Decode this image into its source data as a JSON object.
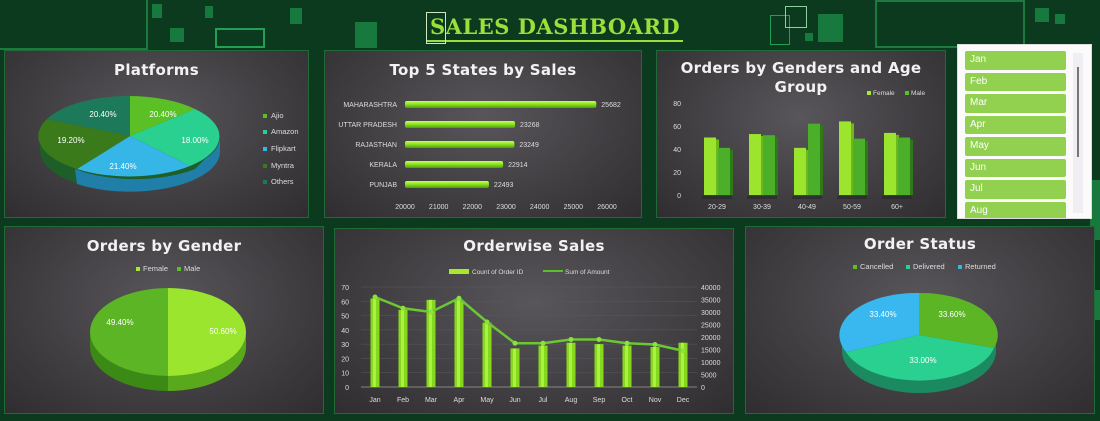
{
  "header": {
    "title": "SALES DASHBOARD"
  },
  "colors": {
    "background": "#0c3a1f",
    "accent": "#9be03a",
    "panel": "#3d3b3e",
    "lime": "#92d050",
    "green": "#4caf2a",
    "teal": "#2ad08f",
    "cyan": "#35b6e6",
    "darkgreen": "#3a7a1a",
    "darkteal": "#1c7a5a"
  },
  "month_slicer": {
    "items": [
      "Jan",
      "Feb",
      "Mar",
      "Apr",
      "May",
      "Jun",
      "Jul",
      "Aug"
    ]
  },
  "panels": {
    "platforms": {
      "title": "Platforms"
    },
    "states": {
      "title": "Top 5 States by Sales"
    },
    "age": {
      "title_line1": "Orders by Genders and Age",
      "title_line2": "Group"
    },
    "gender": {
      "title": "Orders by Gender"
    },
    "orderwise": {
      "title": "Orderwise Sales"
    },
    "status": {
      "title": "Order Status"
    }
  },
  "chart_data": [
    {
      "id": "platforms",
      "type": "pie",
      "title": "Platforms",
      "categories": [
        "Ajio",
        "Amazon",
        "Flipkart",
        "Myntra",
        "Others"
      ],
      "values": [
        20.4,
        18.0,
        21.4,
        19.2,
        20.4
      ],
      "labels": [
        "20.40%",
        "18.00%",
        "21.40%",
        "19.20%",
        "20.40%"
      ],
      "legend_position": "right"
    },
    {
      "id": "states",
      "type": "bar",
      "orientation": "horizontal",
      "title": "Top 5 States by Sales",
      "categories": [
        "MAHARASHTRA",
        "UTTAR PRADESH",
        "RAJASTHAN",
        "KERALA",
        "PUNJAB"
      ],
      "values": [
        25682,
        23268,
        23249,
        22914,
        22493
      ],
      "xlim": [
        20000,
        26000
      ],
      "xticks": [
        "20000",
        "21000",
        "22000",
        "23000",
        "24000",
        "25000",
        "26000"
      ]
    },
    {
      "id": "age",
      "type": "bar",
      "title": "Orders by Genders and Age Group",
      "categories": [
        "20-29",
        "30-39",
        "40-49",
        "50-59",
        "60+"
      ],
      "series": [
        {
          "name": "Female",
          "values": [
            50,
            53,
            41,
            64,
            54
          ]
        },
        {
          "name": "Male",
          "values": [
            41,
            52,
            62,
            49,
            50
          ]
        }
      ],
      "ylim": [
        0,
        80
      ],
      "yticks": [
        "0",
        "20",
        "40",
        "60",
        "80"
      ],
      "legend_position": "top-right"
    },
    {
      "id": "gender",
      "type": "pie",
      "title": "Orders by Gender",
      "categories": [
        "Female",
        "Male"
      ],
      "values": [
        50.6,
        49.4
      ],
      "labels": [
        "50.60%",
        "49.40%"
      ],
      "legend_position": "top"
    },
    {
      "id": "orderwise",
      "type": "bar",
      "title": "Orderwise Sales",
      "categories": [
        "Jan",
        "Feb",
        "Mar",
        "Apr",
        "May",
        "Jun",
        "Jul",
        "Aug",
        "Sep",
        "Oct",
        "Nov",
        "Dec"
      ],
      "series": [
        {
          "name": "Count of Order ID",
          "type": "bar",
          "axis": "left",
          "values": [
            62,
            54,
            61,
            61,
            45,
            27,
            29,
            31,
            30,
            29,
            28,
            31
          ]
        },
        {
          "name": "Sum of Amount",
          "type": "line",
          "axis": "right",
          "values": [
            36000,
            31500,
            30000,
            35500,
            26000,
            17500,
            17500,
            19000,
            19000,
            17500,
            17000,
            14500
          ]
        }
      ],
      "ylim": [
        0,
        70
      ],
      "yticks": [
        "0",
        "10",
        "20",
        "30",
        "40",
        "50",
        "60",
        "70"
      ],
      "y2lim": [
        0,
        40000
      ],
      "y2ticks": [
        "0",
        "5000",
        "10000",
        "15000",
        "20000",
        "25000",
        "30000",
        "35000",
        "40000"
      ],
      "grid": true,
      "legend_position": "top"
    },
    {
      "id": "status",
      "type": "pie",
      "title": "Order Status",
      "categories": [
        "Cancelled",
        "Delivered",
        "Returned"
      ],
      "values": [
        33.6,
        33.0,
        33.4
      ],
      "labels": [
        "33.60%",
        "33.00%",
        "33.40%"
      ],
      "legend_position": "top"
    }
  ]
}
